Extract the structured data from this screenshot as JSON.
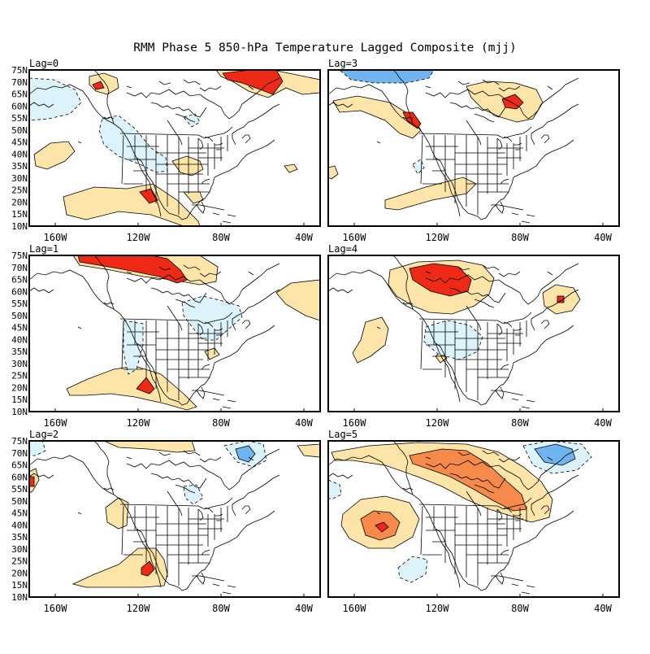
{
  "title": "RMM Phase 5 850-hPa Temperature Lagged Composite (mjj)",
  "lat_labels": [
    "75N",
    "70N",
    "65N",
    "60N",
    "55N",
    "50N",
    "45N",
    "40N",
    "35N",
    "30N",
    "25N",
    "20N",
    "15N",
    "10N"
  ],
  "lon_labels": [
    "160W",
    "120W",
    "80W",
    "40W"
  ],
  "colors": {
    "light_warm": "#fde4a8",
    "medium_warm": "#f58a4a",
    "strong_warm": "#ee2a16",
    "light_cool": "#ddf3fb",
    "medium_cool": "#6fb4ee",
    "frame": "#000000"
  },
  "panels": [
    {
      "label": "Lag=0"
    },
    {
      "label": "Lag=3"
    },
    {
      "label": "Lag=1"
    },
    {
      "label": "Lag=4"
    },
    {
      "label": "Lag=2"
    },
    {
      "label": "Lag=5"
    }
  ]
}
